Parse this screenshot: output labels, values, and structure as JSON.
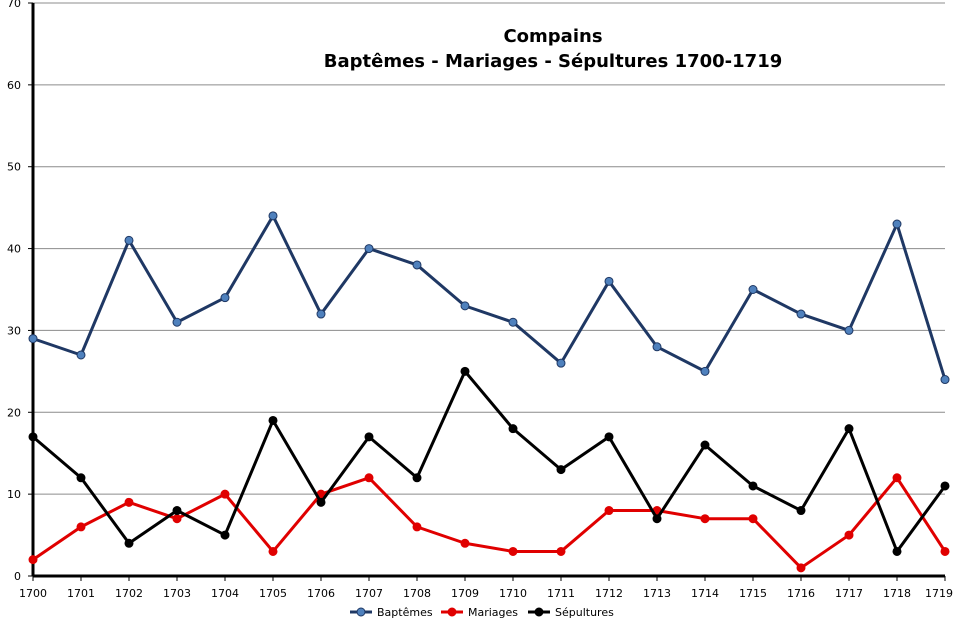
{
  "chart_data": {
    "type": "line",
    "title": "Compains",
    "subtitle": "Baptêmes - Mariages - Sépultures 1700-1719",
    "xlabel": "",
    "ylabel": "",
    "categories": [
      "1700",
      "1701",
      "1702",
      "1703",
      "1704",
      "1705",
      "1706",
      "1707",
      "1708",
      "1709",
      "1710",
      "1711",
      "1712",
      "1713",
      "1714",
      "1715",
      "1716",
      "1717",
      "1718",
      "1719"
    ],
    "ylim": [
      0,
      70
    ],
    "yticks": [
      0,
      10,
      20,
      30,
      40,
      50,
      60,
      70
    ],
    "grid": true,
    "legend_position": "bottom",
    "series": [
      {
        "name": "Baptêmes",
        "line_color": "#1f3864",
        "marker_color": "#4f81bd",
        "values": [
          29,
          27,
          41,
          31,
          34,
          44,
          32,
          40,
          38,
          33,
          31,
          26,
          36,
          28,
          25,
          35,
          32,
          30,
          43,
          24
        ]
      },
      {
        "name": "Mariages",
        "line_color": "#e00000",
        "marker_color": "#e00000",
        "values": [
          2,
          6,
          9,
          7,
          10,
          3,
          10,
          12,
          6,
          4,
          3,
          3,
          8,
          8,
          7,
          7,
          1,
          5,
          12,
          3
        ]
      },
      {
        "name": "Sépultures",
        "line_color": "#000000",
        "marker_color": "#000000",
        "values": [
          17,
          12,
          4,
          8,
          5,
          19,
          9,
          17,
          12,
          25,
          18,
          13,
          17,
          7,
          16,
          11,
          8,
          18,
          3,
          11
        ]
      }
    ]
  }
}
